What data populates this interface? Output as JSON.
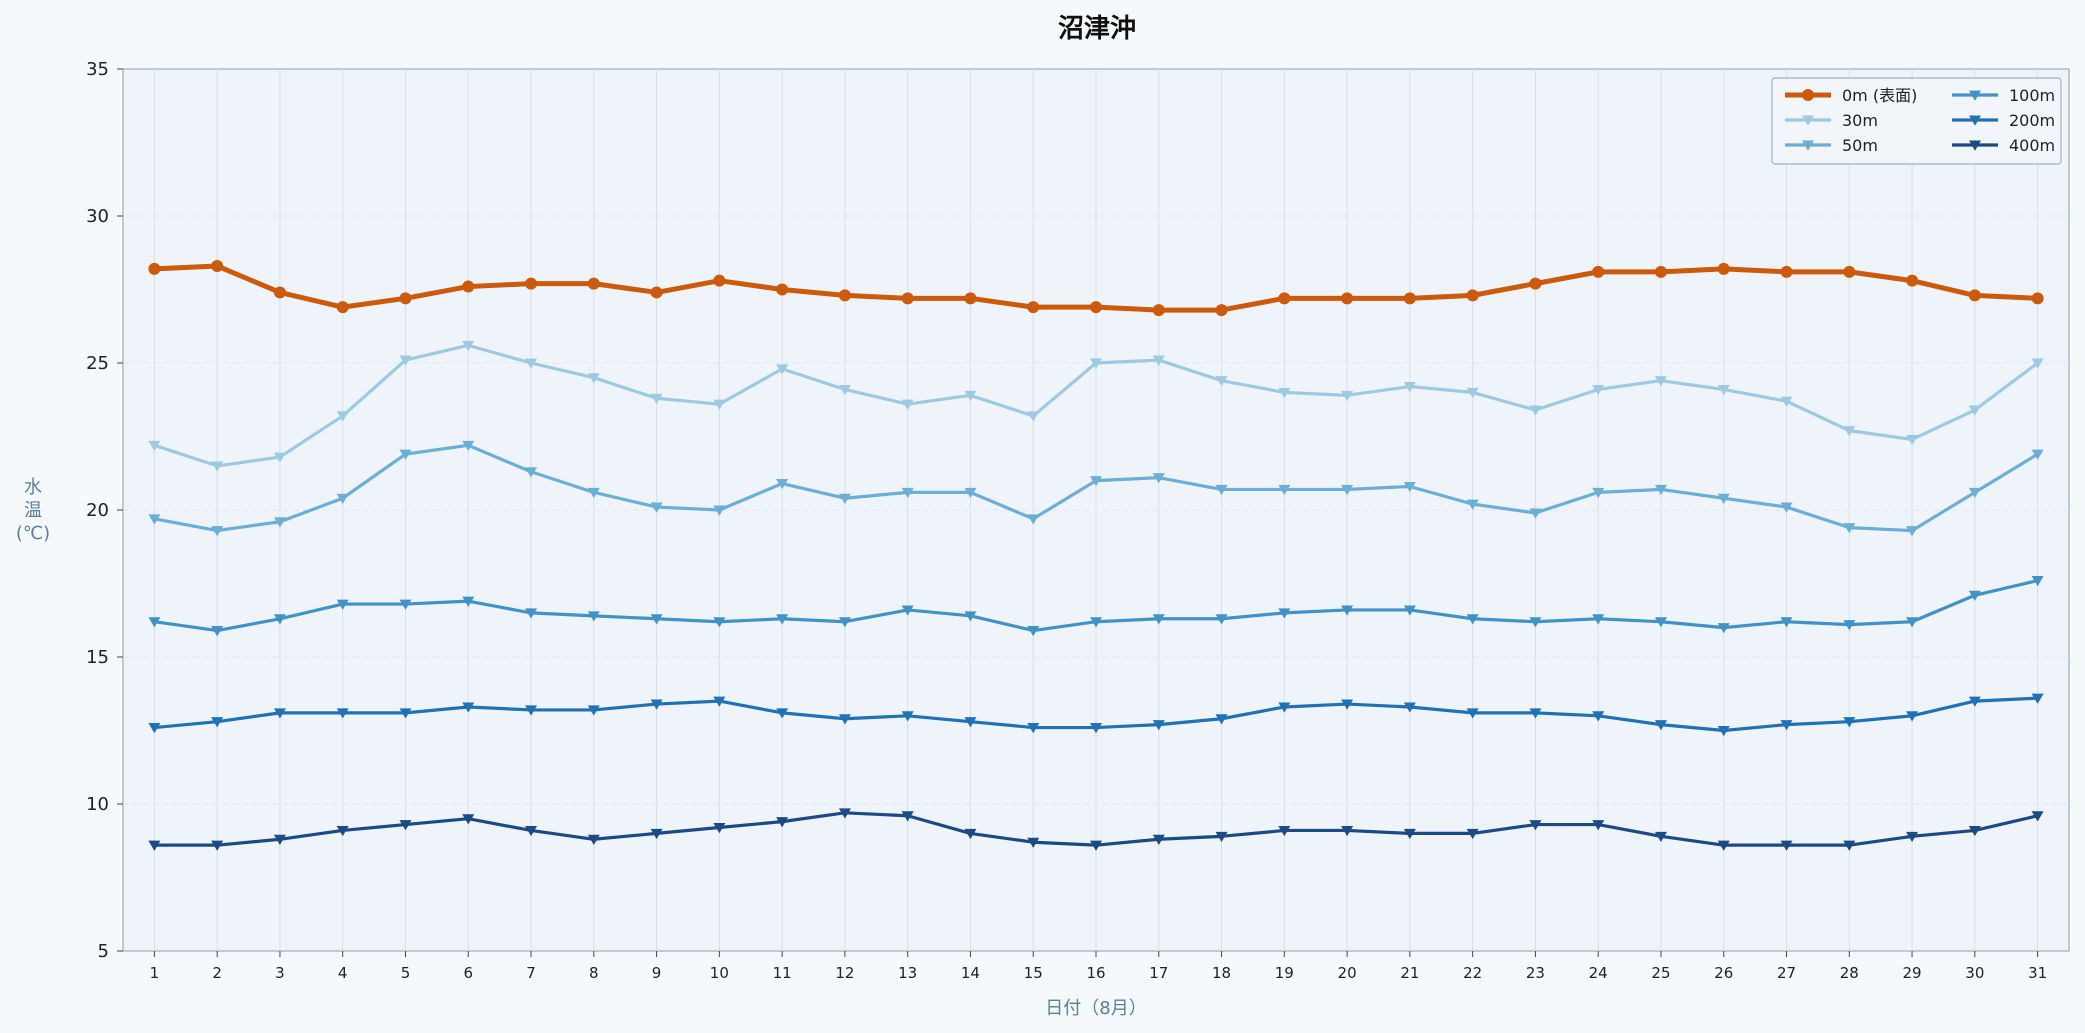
{
  "chart_data": {
    "type": "line",
    "title": "沼津沖",
    "xlabel": "日付（8月）",
    "ylabel_chars": [
      "水",
      "温",
      "(℃)"
    ],
    "x": [
      1,
      2,
      3,
      4,
      5,
      6,
      7,
      8,
      9,
      10,
      11,
      12,
      13,
      14,
      15,
      16,
      17,
      18,
      19,
      20,
      21,
      22,
      23,
      24,
      25,
      26,
      27,
      28,
      29,
      30,
      31
    ],
    "xlim": [
      0.5,
      31.5
    ],
    "ylim": [
      5,
      35
    ],
    "yticks": [
      5,
      10,
      15,
      20,
      25,
      30,
      35
    ],
    "grid": true,
    "legend_position": "top-right",
    "series": [
      {
        "name": "0m (表面)",
        "color": "#cc5a0c",
        "marker": "circle",
        "values": [
          28.2,
          28.3,
          27.4,
          26.9,
          27.2,
          27.6,
          27.7,
          27.7,
          27.4,
          27.8,
          27.5,
          27.3,
          27.2,
          27.2,
          26.9,
          26.9,
          26.8,
          26.8,
          27.2,
          27.2,
          27.2,
          27.3,
          27.7,
          28.1,
          28.1,
          28.2,
          28.1,
          28.1,
          27.8,
          27.3,
          27.2
        ]
      },
      {
        "name": "30m",
        "color": "#9ecae1",
        "marker": "triangle-down",
        "values": [
          22.2,
          21.5,
          21.8,
          23.2,
          25.1,
          25.6,
          25.0,
          24.5,
          23.8,
          23.6,
          24.8,
          24.1,
          23.6,
          23.9,
          23.2,
          25.0,
          25.1,
          24.4,
          24.0,
          23.9,
          24.2,
          24.0,
          23.4,
          24.1,
          24.4,
          24.1,
          23.7,
          22.7,
          22.4,
          23.4,
          25.0
        ]
      },
      {
        "name": "50m",
        "color": "#6baed6",
        "marker": "triangle-down",
        "values": [
          19.7,
          19.3,
          19.6,
          20.4,
          21.9,
          22.2,
          21.3,
          20.6,
          20.1,
          20.0,
          20.9,
          20.4,
          20.6,
          20.6,
          19.7,
          21.0,
          21.1,
          20.7,
          20.7,
          20.7,
          20.8,
          20.2,
          19.9,
          20.6,
          20.7,
          20.4,
          20.1,
          19.4,
          19.3,
          20.6,
          21.9
        ]
      },
      {
        "name": "100m",
        "color": "#4292c6",
        "marker": "triangle-down",
        "values": [
          16.2,
          15.9,
          16.3,
          16.8,
          16.8,
          16.9,
          16.5,
          16.4,
          16.3,
          16.2,
          16.3,
          16.2,
          16.6,
          16.4,
          15.9,
          16.2,
          16.3,
          16.3,
          16.5,
          16.6,
          16.6,
          16.3,
          16.2,
          16.3,
          16.2,
          16.0,
          16.2,
          16.1,
          16.2,
          17.1,
          17.6
        ]
      },
      {
        "name": "200m",
        "color": "#2171b5",
        "marker": "triangle-down",
        "values": [
          12.6,
          12.8,
          13.1,
          13.1,
          13.1,
          13.3,
          13.2,
          13.2,
          13.4,
          13.5,
          13.1,
          12.9,
          13.0,
          12.8,
          12.6,
          12.6,
          12.7,
          12.9,
          13.3,
          13.4,
          13.3,
          13.1,
          13.1,
          13.0,
          12.7,
          12.5,
          12.7,
          12.8,
          13.0,
          13.5,
          13.6
        ]
      },
      {
        "name": "400m",
        "color": "#1b4a85",
        "marker": "triangle-down",
        "values": [
          8.6,
          8.6,
          8.8,
          9.1,
          9.3,
          9.5,
          9.1,
          8.8,
          9.0,
          9.2,
          9.4,
          9.7,
          9.6,
          9.0,
          8.7,
          8.6,
          8.8,
          8.9,
          9.1,
          9.1,
          9.0,
          9.0,
          9.3,
          9.3,
          8.9,
          8.6,
          8.6,
          8.6,
          8.9,
          9.1,
          9.6
        ]
      }
    ]
  }
}
